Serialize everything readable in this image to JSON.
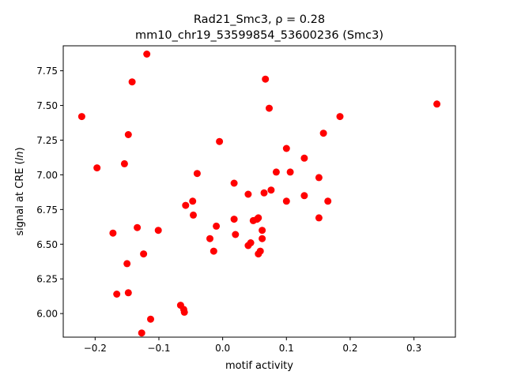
{
  "chart_data": {
    "type": "scatter",
    "title_line1": "Rad21_Smc3, ρ = 0.28",
    "title_line2": "mm10_chr19_53599854_53600236 (Smc3)",
    "xlabel": "motif activity",
    "ylabel": "signal at CRE (ln)",
    "xlim": [
      -0.25,
      0.365
    ],
    "ylim": [
      5.83,
      7.93
    ],
    "xticks": [
      -0.2,
      -0.1,
      0.0,
      0.1,
      0.2,
      0.3
    ],
    "xtick_labels": [
      "−0.2",
      "−0.1",
      "0.0",
      "0.1",
      "0.2",
      "0.3"
    ],
    "yticks": [
      6.0,
      6.25,
      6.5,
      6.75,
      7.0,
      7.25,
      7.5,
      7.75
    ],
    "ytick_labels": [
      "6.00",
      "6.25",
      "6.50",
      "6.75",
      "7.00",
      "7.25",
      "7.50",
      "7.75"
    ],
    "grid": false,
    "marker_color": "#ff0000",
    "points": [
      [
        -0.221,
        7.42
      ],
      [
        -0.119,
        7.87
      ],
      [
        -0.142,
        7.67
      ],
      [
        -0.197,
        7.05
      ],
      [
        -0.148,
        7.29
      ],
      [
        -0.154,
        7.08
      ],
      [
        -0.172,
        6.58
      ],
      [
        -0.134,
        6.62
      ],
      [
        -0.101,
        6.6
      ],
      [
        -0.15,
        6.36
      ],
      [
        -0.124,
        6.43
      ],
      [
        -0.166,
        6.14
      ],
      [
        -0.148,
        6.15
      ],
      [
        -0.066,
        6.06
      ],
      [
        -0.061,
        6.03
      ],
      [
        -0.06,
        6.01
      ],
      [
        -0.113,
        5.96
      ],
      [
        -0.127,
        5.86
      ],
      [
        -0.005,
        7.24
      ],
      [
        -0.04,
        7.01
      ],
      [
        -0.058,
        6.78
      ],
      [
        -0.047,
        6.81
      ],
      [
        -0.046,
        6.71
      ],
      [
        -0.01,
        6.63
      ],
      [
        -0.02,
        6.54
      ],
      [
        -0.014,
        6.45
      ],
      [
        0.018,
        6.94
      ],
      [
        0.018,
        6.68
      ],
      [
        0.02,
        6.57
      ],
      [
        0.04,
        6.86
      ],
      [
        0.04,
        6.49
      ],
      [
        0.044,
        6.51
      ],
      [
        0.048,
        6.67
      ],
      [
        0.054,
        6.68
      ],
      [
        0.056,
        6.69
      ],
      [
        0.056,
        6.43
      ],
      [
        0.059,
        6.45
      ],
      [
        0.062,
        6.6
      ],
      [
        0.062,
        6.54
      ],
      [
        0.065,
        6.87
      ],
      [
        0.067,
        7.69
      ],
      [
        0.073,
        7.48
      ],
      [
        0.076,
        6.89
      ],
      [
        0.084,
        7.02
      ],
      [
        0.1,
        7.19
      ],
      [
        0.1,
        6.81
      ],
      [
        0.106,
        7.02
      ],
      [
        0.128,
        7.12
      ],
      [
        0.128,
        6.85
      ],
      [
        0.151,
        6.98
      ],
      [
        0.151,
        6.69
      ],
      [
        0.158,
        7.3
      ],
      [
        0.165,
        6.81
      ],
      [
        0.184,
        7.42
      ],
      [
        0.336,
        7.51
      ]
    ]
  }
}
